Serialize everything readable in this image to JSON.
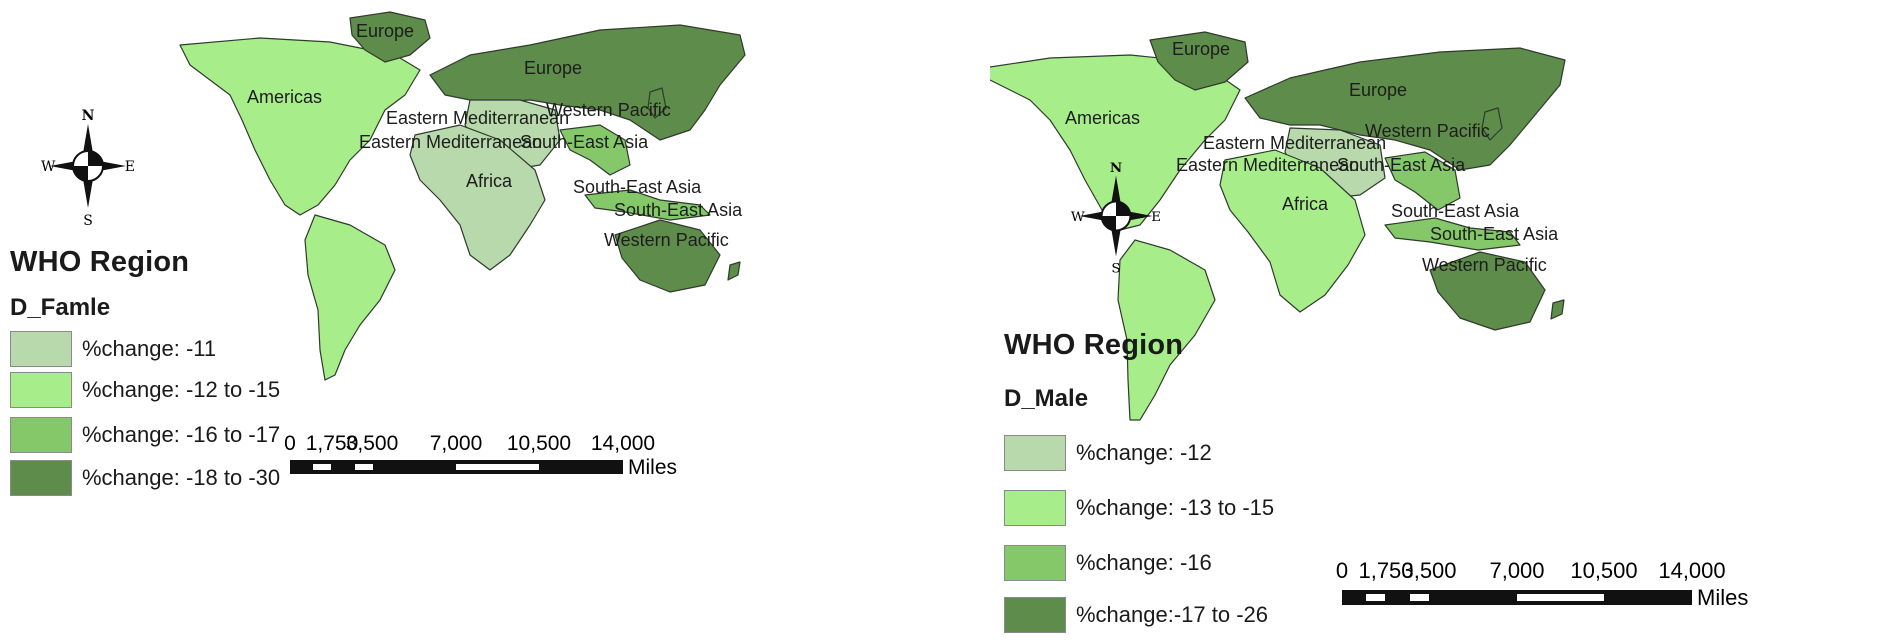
{
  "maps": [
    {
      "legend": {
        "title": "WHO Region",
        "field": "D_Famle",
        "classes": [
          {
            "label": "%change: -11",
            "color": "#b7d9ab"
          },
          {
            "label": "%change: -12 to -15",
            "color": "#a7ee8a"
          },
          {
            "label": "%change: -16 to -17",
            "color": "#84c86a"
          },
          {
            "label": "%change: -18 to -30",
            "color": "#5e8c4b"
          }
        ]
      },
      "region_labels": [
        "Europe",
        "Europe",
        "Americas",
        "Eastern Mediterranean",
        "Eastern Mediterranean",
        "South-East Asia",
        "Western Pacific",
        "Africa",
        "South-East Asia",
        "South-East Asia",
        "Western Pacific"
      ],
      "compass": {
        "n": "N",
        "s": "S",
        "e": "E",
        "w": "W"
      },
      "scale": {
        "ticks": [
          "0",
          "1,750",
          "3,500",
          "7,000",
          "10,500",
          "14,000"
        ],
        "unit": "Miles"
      }
    },
    {
      "legend": {
        "title": "WHO Region",
        "field": "D_Male",
        "classes": [
          {
            "label": "%change: -12",
            "color": "#b7d9ab"
          },
          {
            "label": "%change: -13 to -15",
            "color": "#a7ee8a"
          },
          {
            "label": "%change: -16",
            "color": "#84c86a"
          },
          {
            "label": "%change:-17 to -26",
            "color": "#5e8c4b"
          }
        ]
      },
      "region_labels": [
        "Europe",
        "Europe",
        "Americas",
        "Eastern Mediterranean",
        "Eastern Mediterranean",
        "South-East Asia",
        "Western Pacific",
        "Africa",
        "South-East Asia",
        "South-East Asia",
        "Western Pacific"
      ],
      "compass": {
        "n": "N",
        "s": "S",
        "e": "E",
        "w": "W"
      },
      "scale": {
        "ticks": [
          "0",
          "1,750",
          "3,500",
          "7,000",
          "10,500",
          "14,000"
        ],
        "unit": "Miles"
      }
    }
  ]
}
